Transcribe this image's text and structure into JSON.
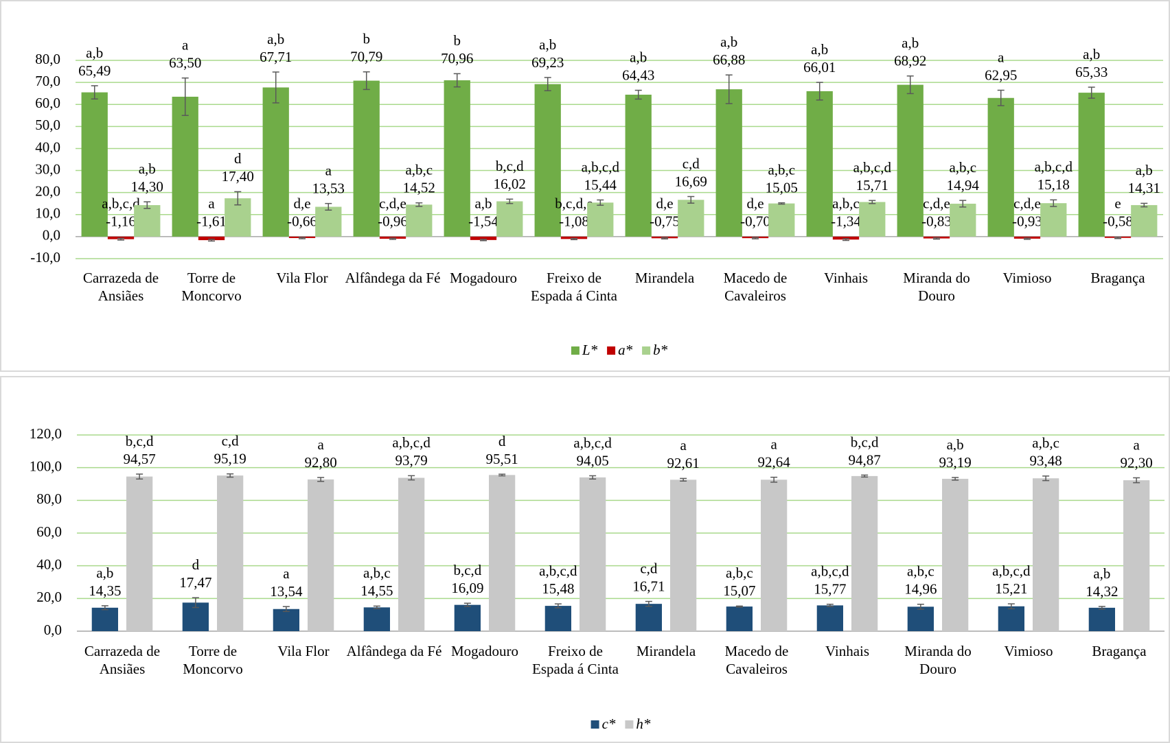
{
  "chart_data": [
    {
      "type": "bar",
      "categories": [
        "Carrazeda de Ansiães",
        "Torre de Moncorvo",
        "Vila Flor",
        "Alfândega da Fé",
        "Mogadouro",
        "Freixo de Espada á Cinta",
        "Mirandela",
        "Macedo de Cavaleiros",
        "Vinhais",
        "Miranda do Douro",
        "Vimioso",
        "Bragança"
      ],
      "ylim": [
        -10,
        80
      ],
      "yticks": [
        {
          "value": -10,
          "label": "-10,0"
        },
        {
          "value": 0,
          "label": "0,0"
        },
        {
          "value": 10,
          "label": "10,0"
        },
        {
          "value": 20,
          "label": "20,0"
        },
        {
          "value": 30,
          "label": "30,0"
        },
        {
          "value": 40,
          "label": "40,0"
        },
        {
          "value": 50,
          "label": "50,0"
        },
        {
          "value": 60,
          "label": "60,0"
        },
        {
          "value": 70,
          "label": "70,0"
        },
        {
          "value": 80,
          "label": "80,0"
        }
      ],
      "grid": true,
      "grid_color": "#a9d98b",
      "legend": "bottom",
      "series": [
        {
          "name": "L*",
          "color": "#70ad47",
          "values": [
            65.49,
            63.5,
            67.71,
            70.79,
            70.96,
            69.23,
            64.43,
            66.88,
            66.01,
            68.92,
            62.95,
            65.33
          ],
          "value_labels": [
            "65,49",
            "63,50",
            "67,71",
            "70,79",
            "70,96",
            "69,23",
            "64,43",
            "66,88",
            "66,01",
            "68,92",
            "62,95",
            "65,33"
          ],
          "errors": [
            3,
            8.5,
            7,
            4,
            3,
            3,
            2,
            6.5,
            4,
            4,
            3.5,
            2.5
          ],
          "letters": [
            "a,b",
            "a",
            "a,b",
            "b",
            "b",
            "a,b",
            "a,b",
            "a,b",
            "a,b",
            "a,b",
            "a",
            "a,b"
          ]
        },
        {
          "name": "a*",
          "color": "#c00000",
          "values": [
            -1.16,
            -1.61,
            -0.66,
            -0.96,
            -1.54,
            -1.08,
            -0.75,
            -0.7,
            -1.34,
            -0.83,
            -0.93,
            -0.58
          ],
          "value_labels": [
            "-1,16",
            "-1,61",
            "-0,66",
            "-0,96",
            "-1,54",
            "-1,08",
            "-0,75",
            "-0,70",
            "-1,34",
            "-0,83",
            "-0,93",
            "-0,58"
          ],
          "errors": [
            0.4,
            0.4,
            0.3,
            0.3,
            0.3,
            0.3,
            0.3,
            0.3,
            0.4,
            0.3,
            0.3,
            0.3
          ],
          "letters": [
            "a,b,c,d",
            "a",
            "d,e",
            "c,d,e",
            "a,b",
            "b,c,d,e",
            "d,e",
            "d,e",
            "a,b,c",
            "c,d,e",
            "c,d,e",
            "e"
          ]
        },
        {
          "name": "b*",
          "color": "#a9d18e",
          "values": [
            14.3,
            17.4,
            13.53,
            14.52,
            16.02,
            15.44,
            16.69,
            15.05,
            15.71,
            14.94,
            15.18,
            14.31
          ],
          "value_labels": [
            "14,30",
            "17,40",
            "13,53",
            "14,52",
            "16,02",
            "15,44",
            "16,69",
            "15,05",
            "15,71",
            "14,94",
            "15,18",
            "14,31"
          ],
          "errors": [
            1.5,
            3,
            1.5,
            0.8,
            1,
            1.2,
            1.5,
            0.3,
            0.7,
            1.5,
            1.5,
            0.8
          ],
          "letters": [
            "a,b",
            "d",
            "a",
            "a,b,c",
            "b,c,d",
            "a,b,c,d",
            "c,d",
            "a,b,c",
            "a,b,c,d",
            "a,b,c",
            "a,b,c,d",
            "a,b"
          ]
        }
      ]
    },
    {
      "type": "bar",
      "categories": [
        "Carrazeda de Ansiães",
        "Torre de Moncorvo",
        "Vila Flor",
        "Alfândega da Fé",
        "Mogadouro",
        "Freixo de Espada á Cinta",
        "Mirandela",
        "Macedo de Cavaleiros",
        "Vinhais",
        "Miranda do Douro",
        "Vimioso",
        "Bragança"
      ],
      "ylim": [
        0,
        120
      ],
      "yticks": [
        {
          "value": 0,
          "label": "0,0"
        },
        {
          "value": 20,
          "label": "20,0"
        },
        {
          "value": 40,
          "label": "40,0"
        },
        {
          "value": 60,
          "label": "60,0"
        },
        {
          "value": 80,
          "label": "80,0"
        },
        {
          "value": 100,
          "label": "100,0"
        },
        {
          "value": 120,
          "label": "120,0"
        }
      ],
      "grid": true,
      "grid_color": "#a9d98b",
      "legend": "bottom",
      "series": [
        {
          "name": "c*",
          "color": "#1f4e79",
          "values": [
            14.35,
            17.47,
            13.54,
            14.55,
            16.09,
            15.48,
            16.71,
            15.07,
            15.77,
            14.96,
            15.21,
            14.32
          ],
          "value_labels": [
            "14,35",
            "17,47",
            "13,54",
            "14,55",
            "16,09",
            "15,48",
            "16,71",
            "15,07",
            "15,77",
            "14,96",
            "15,21",
            "14,32"
          ],
          "errors": [
            1.2,
            3,
            1.5,
            0.8,
            1,
            1.2,
            1.5,
            0.3,
            0.7,
            1.5,
            1.5,
            0.8
          ],
          "letters": [
            "a,b",
            "d",
            "a",
            "a,b,c",
            "b,c,d",
            "a,b,c,d",
            "c,d",
            "a,b,c",
            "a,b,c,d",
            "a,b,c",
            "a,b,c,d",
            "a,b"
          ]
        },
        {
          "name": "h*",
          "color": "#c8c8c8",
          "values": [
            94.57,
            95.19,
            92.8,
            93.79,
            95.51,
            94.05,
            92.61,
            92.64,
            94.87,
            93.19,
            93.48,
            92.3
          ],
          "value_labels": [
            "94,57",
            "95,19",
            "92,80",
            "93,79",
            "95,51",
            "94,05",
            "92,61",
            "92,64",
            "94,87",
            "93,19",
            "93,48",
            "92,30"
          ],
          "errors": [
            1.5,
            1,
            1.2,
            1.3,
            0.5,
            1,
            0.8,
            1.5,
            0.6,
            0.8,
            1.4,
            1.5
          ],
          "letters": [
            "b,c,d",
            "c,d",
            "a",
            "a,b,c,d",
            "d",
            "a,b,c,d",
            "a",
            "a",
            "b,c,d",
            "a,b",
            "a,b,c",
            "a"
          ]
        }
      ]
    }
  ]
}
